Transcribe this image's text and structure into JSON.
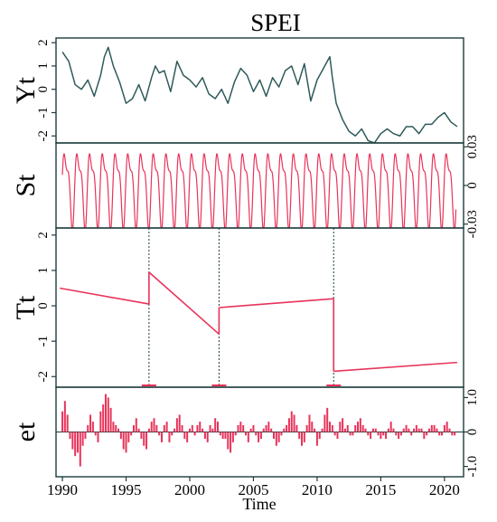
{
  "chart_data": {
    "type": "line",
    "title": "SPEI",
    "xlabel": "Time",
    "x_ticks": [
      "1990",
      "1995",
      "2000",
      "2005",
      "2010",
      "2015",
      "2020"
    ],
    "xlim": [
      1989.5,
      2021.5
    ],
    "colors": {
      "frame": "#1d3c3c",
      "yt": "#2f5a5a",
      "component": "#e8335a"
    },
    "panels": [
      {
        "label": "Yt",
        "ylim": [
          -2.3,
          2.2
        ],
        "y_ticks": [
          "2",
          "1",
          "0",
          "-1",
          "-2"
        ],
        "tick_side": "left",
        "series": {
          "x": [
            1990.0,
            1990.5,
            1991.0,
            1991.5,
            1992.0,
            1992.5,
            1993.0,
            1993.3,
            1993.6,
            1994.0,
            1994.5,
            1995.0,
            1995.5,
            1996.0,
            1996.5,
            1997.0,
            1997.3,
            1997.6,
            1998.0,
            1998.5,
            1999.0,
            1999.5,
            2000.0,
            2000.5,
            2001.0,
            2001.5,
            2002.0,
            2002.5,
            2003.0,
            2003.5,
            2004.0,
            2004.5,
            2005.0,
            2005.5,
            2006.0,
            2006.5,
            2007.0,
            2007.5,
            2008.0,
            2008.5,
            2009.0,
            2009.5,
            2010.0,
            2010.5,
            2011.0,
            2011.2,
            2011.5,
            2012.0,
            2012.5,
            2013.0,
            2013.5,
            2014.0,
            2014.5,
            2015.0,
            2015.5,
            2016.0,
            2016.5,
            2017.0,
            2017.5,
            2018.0,
            2018.5,
            2019.0,
            2019.5,
            2020.0,
            2020.5,
            2021.0
          ],
          "y": [
            1.6,
            1.2,
            0.2,
            0.0,
            0.4,
            -0.3,
            0.6,
            1.4,
            1.8,
            1.0,
            0.3,
            -0.6,
            -0.4,
            0.2,
            -0.5,
            0.5,
            1.0,
            0.7,
            0.8,
            -0.1,
            1.2,
            0.6,
            0.4,
            0.1,
            0.5,
            -0.2,
            -0.4,
            0.0,
            -0.6,
            0.3,
            0.9,
            0.6,
            -0.1,
            0.4,
            -0.3,
            0.5,
            0.1,
            0.8,
            1.0,
            0.2,
            1.1,
            -0.5,
            0.4,
            0.9,
            1.4,
            0.5,
            -0.6,
            -1.3,
            -1.8,
            -2.0,
            -1.7,
            -2.2,
            -2.3,
            -1.9,
            -1.7,
            -1.9,
            -2.0,
            -1.6,
            -1.6,
            -1.9,
            -1.5,
            -1.5,
            -1.2,
            -1.0,
            -1.4,
            -1.6
          ]
        }
      },
      {
        "label": "St",
        "ylim": [
          -0.033,
          0.033
        ],
        "y_ticks": [
          "0.03",
          "0",
          "-0.03"
        ],
        "tick_side": "right",
        "seasonal": {
          "period_years": 1,
          "amplitude": 0.03
        }
      },
      {
        "label": "Tt",
        "ylim": [
          -2.3,
          2.2
        ],
        "y_ticks": [
          "2",
          "1",
          "0",
          "-1",
          "-2"
        ],
        "tick_side": "left",
        "breakpoints": [
          1996.8,
          2002.3,
          2011.3
        ],
        "segments": [
          {
            "x": [
              1989.8,
              1996.8
            ],
            "y": [
              0.5,
              0.05
            ]
          },
          {
            "x": [
              1996.8,
              2002.3
            ],
            "y": [
              0.95,
              -0.8
            ]
          },
          {
            "x": [
              2002.3,
              2011.3
            ],
            "y": [
              -0.05,
              0.2
            ]
          },
          {
            "x": [
              2011.3,
              2021.0
            ],
            "y": [
              -1.85,
              -1.6
            ]
          }
        ]
      },
      {
        "label": "et",
        "ylim": [
          -1.3,
          1.3
        ],
        "y_ticks": [
          "1.0",
          "0",
          "-1.0"
        ],
        "tick_side": "right",
        "residuals": {
          "x": [
            1990.0,
            1990.2,
            1990.4,
            1990.6,
            1990.8,
            1991.0,
            1991.2,
            1991.4,
            1991.6,
            1991.8,
            1992.0,
            1992.2,
            1992.4,
            1992.6,
            1992.8,
            1993.0,
            1993.2,
            1993.4,
            1993.6,
            1993.8,
            1994.0,
            1994.2,
            1994.4,
            1994.6,
            1994.8,
            1995.0,
            1995.2,
            1995.4,
            1995.6,
            1995.8,
            1996.0,
            1996.2,
            1996.4,
            1996.6,
            1996.8,
            1997.0,
            1997.2,
            1997.4,
            1997.6,
            1997.8,
            1998.0,
            1998.2,
            1998.4,
            1998.6,
            1998.8,
            1999.0,
            1999.2,
            1999.4,
            1999.6,
            1999.8,
            2000.0,
            2000.2,
            2000.4,
            2000.6,
            2000.8,
            2001.0,
            2001.2,
            2001.4,
            2001.6,
            2001.8,
            2002.0,
            2002.2,
            2002.4,
            2002.6,
            2002.8,
            2003.0,
            2003.2,
            2003.4,
            2003.6,
            2003.8,
            2004.0,
            2004.2,
            2004.4,
            2004.6,
            2004.8,
            2005.0,
            2005.2,
            2005.4,
            2005.6,
            2005.8,
            2006.0,
            2006.2,
            2006.4,
            2006.6,
            2006.8,
            2007.0,
            2007.2,
            2007.4,
            2007.6,
            2007.8,
            2008.0,
            2008.2,
            2008.4,
            2008.6,
            2008.8,
            2009.0,
            2009.2,
            2009.4,
            2009.6,
            2009.8,
            2010.0,
            2010.2,
            2010.4,
            2010.6,
            2010.8,
            2011.0,
            2011.2,
            2011.4,
            2011.6,
            2011.8,
            2012.0,
            2012.2,
            2012.4,
            2012.6,
            2012.8,
            2013.0,
            2013.2,
            2013.4,
            2013.6,
            2013.8,
            2014.0,
            2014.2,
            2014.4,
            2014.6,
            2014.8,
            2015.0,
            2015.2,
            2015.4,
            2015.6,
            2015.8,
            2016.0,
            2016.2,
            2016.4,
            2016.6,
            2016.8,
            2017.0,
            2017.2,
            2017.4,
            2017.6,
            2017.8,
            2018.0,
            2018.2,
            2018.4,
            2018.6,
            2018.8,
            2019.0,
            2019.2,
            2019.4,
            2019.6,
            2019.8,
            2020.0,
            2020.2,
            2020.4,
            2020.6,
            2020.8
          ],
          "y": [
            0.6,
            0.9,
            0.5,
            -0.2,
            -0.5,
            -0.7,
            -0.6,
            -1.0,
            -0.4,
            -0.2,
            0.2,
            0.5,
            0.3,
            -0.1,
            -0.3,
            0.6,
            0.8,
            1.1,
            1.0,
            0.7,
            0.3,
            0.2,
            0.1,
            -0.2,
            -0.5,
            -0.6,
            -0.3,
            -0.1,
            0.2,
            0.4,
            0.1,
            -0.2,
            -0.4,
            -0.5,
            0.1,
            0.3,
            0.4,
            0.2,
            -0.1,
            -0.3,
            0.2,
            0.3,
            -0.3,
            -0.1,
            0.1,
            0.4,
            0.5,
            0.2,
            -0.2,
            -0.3,
            0.1,
            0.2,
            -0.1,
            0.2,
            0.3,
            0.1,
            -0.2,
            -0.3,
            0.2,
            0.1,
            0.4,
            0.3,
            -0.1,
            -0.2,
            -0.2,
            -0.5,
            -0.6,
            -0.3,
            -0.1,
            0.2,
            0.3,
            0.2,
            -0.1,
            -0.3,
            0.1,
            0.2,
            -0.1,
            -0.3,
            -0.2,
            0.1,
            0.2,
            0.3,
            0.1,
            -0.2,
            -0.4,
            -0.3,
            -0.1,
            0.1,
            0.2,
            0.4,
            0.6,
            0.5,
            0.2,
            -0.2,
            -0.4,
            -0.3,
            0.2,
            0.5,
            0.3,
            0.1,
            -0.4,
            -0.2,
            0.1,
            0.5,
            0.7,
            0.3,
            0.2,
            -0.1,
            -0.2,
            0.3,
            0.4,
            0.1,
            0.2,
            -0.1,
            -0.1,
            0.2,
            0.3,
            0.4,
            0.2,
            0.1,
            -0.1,
            -0.2,
            0.1,
            0.1,
            -0.1,
            -0.2,
            -0.1,
            -0.2,
            0.1,
            0.3,
            0.1,
            -0.1,
            -0.2,
            -0.1,
            0.1,
            0.2,
            0.1,
            -0.1,
            0.1,
            0.2,
            0.1,
            0.1,
            -0.2,
            -0.1,
            0.1,
            0.2,
            0.2,
            0.1,
            -0.1,
            -0.1,
            0.2,
            0.3,
            0.1,
            -0.1,
            -0.1
          ]
        }
      }
    ]
  }
}
